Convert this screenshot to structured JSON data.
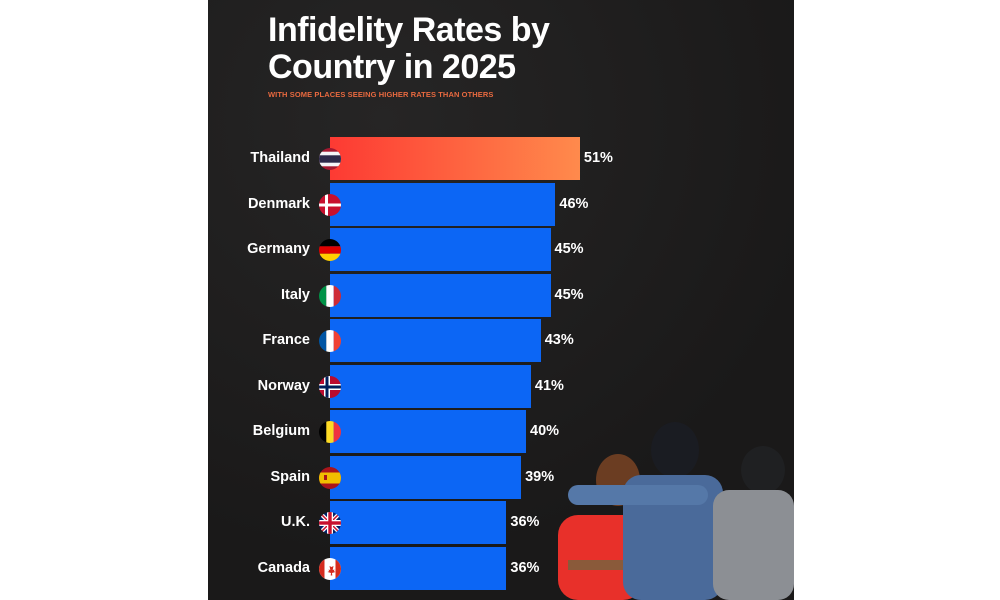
{
  "header": {
    "title_line1": "Infidelity Rates by",
    "title_line2": "Country in 2025",
    "subtitle": "WITH SOME PLACES SEEING HIGHER RATES THAN OTHERS"
  },
  "colors": {
    "background": "#1c1b1b",
    "bar": "#0c66f5",
    "highlight_start": "#fd3a33",
    "highlight_end": "#ff8a4c",
    "subtitle": "#e8693f"
  },
  "rows": [
    {
      "country": "Thailand",
      "value_label": "51%",
      "flag": "thailand-flag-icon"
    },
    {
      "country": "Denmark",
      "value_label": "46%",
      "flag": "denmark-flag-icon"
    },
    {
      "country": "Germany",
      "value_label": "45%",
      "flag": "germany-flag-icon"
    },
    {
      "country": "Italy",
      "value_label": "45%",
      "flag": "italy-flag-icon"
    },
    {
      "country": "France",
      "value_label": "43%",
      "flag": "france-flag-icon"
    },
    {
      "country": "Norway",
      "value_label": "41%",
      "flag": "norway-flag-icon"
    },
    {
      "country": "Belgium",
      "value_label": "40%",
      "flag": "belgium-flag-icon"
    },
    {
      "country": "Spain",
      "value_label": "39%",
      "flag": "spain-flag-icon"
    },
    {
      "country": "U.K.",
      "value_label": "36%",
      "flag": "uk-flag-icon"
    },
    {
      "country": "Canada",
      "value_label": "36%",
      "flag": "canada-flag-icon"
    }
  ],
  "chart_data": {
    "type": "bar",
    "orientation": "horizontal",
    "title": "Infidelity Rates by Country in 2025",
    "subtitle": "WITH SOME PLACES SEEING HIGHER RATES THAN OTHERS",
    "categories": [
      "Thailand",
      "Denmark",
      "Germany",
      "Italy",
      "France",
      "Norway",
      "Belgium",
      "Spain",
      "U.K.",
      "Canada"
    ],
    "values": [
      51,
      46,
      45,
      45,
      43,
      41,
      40,
      39,
      36,
      36
    ],
    "unit": "%",
    "highlighted": "Thailand",
    "xlabel": "",
    "ylabel": "",
    "grid": false,
    "legend": "none"
  }
}
